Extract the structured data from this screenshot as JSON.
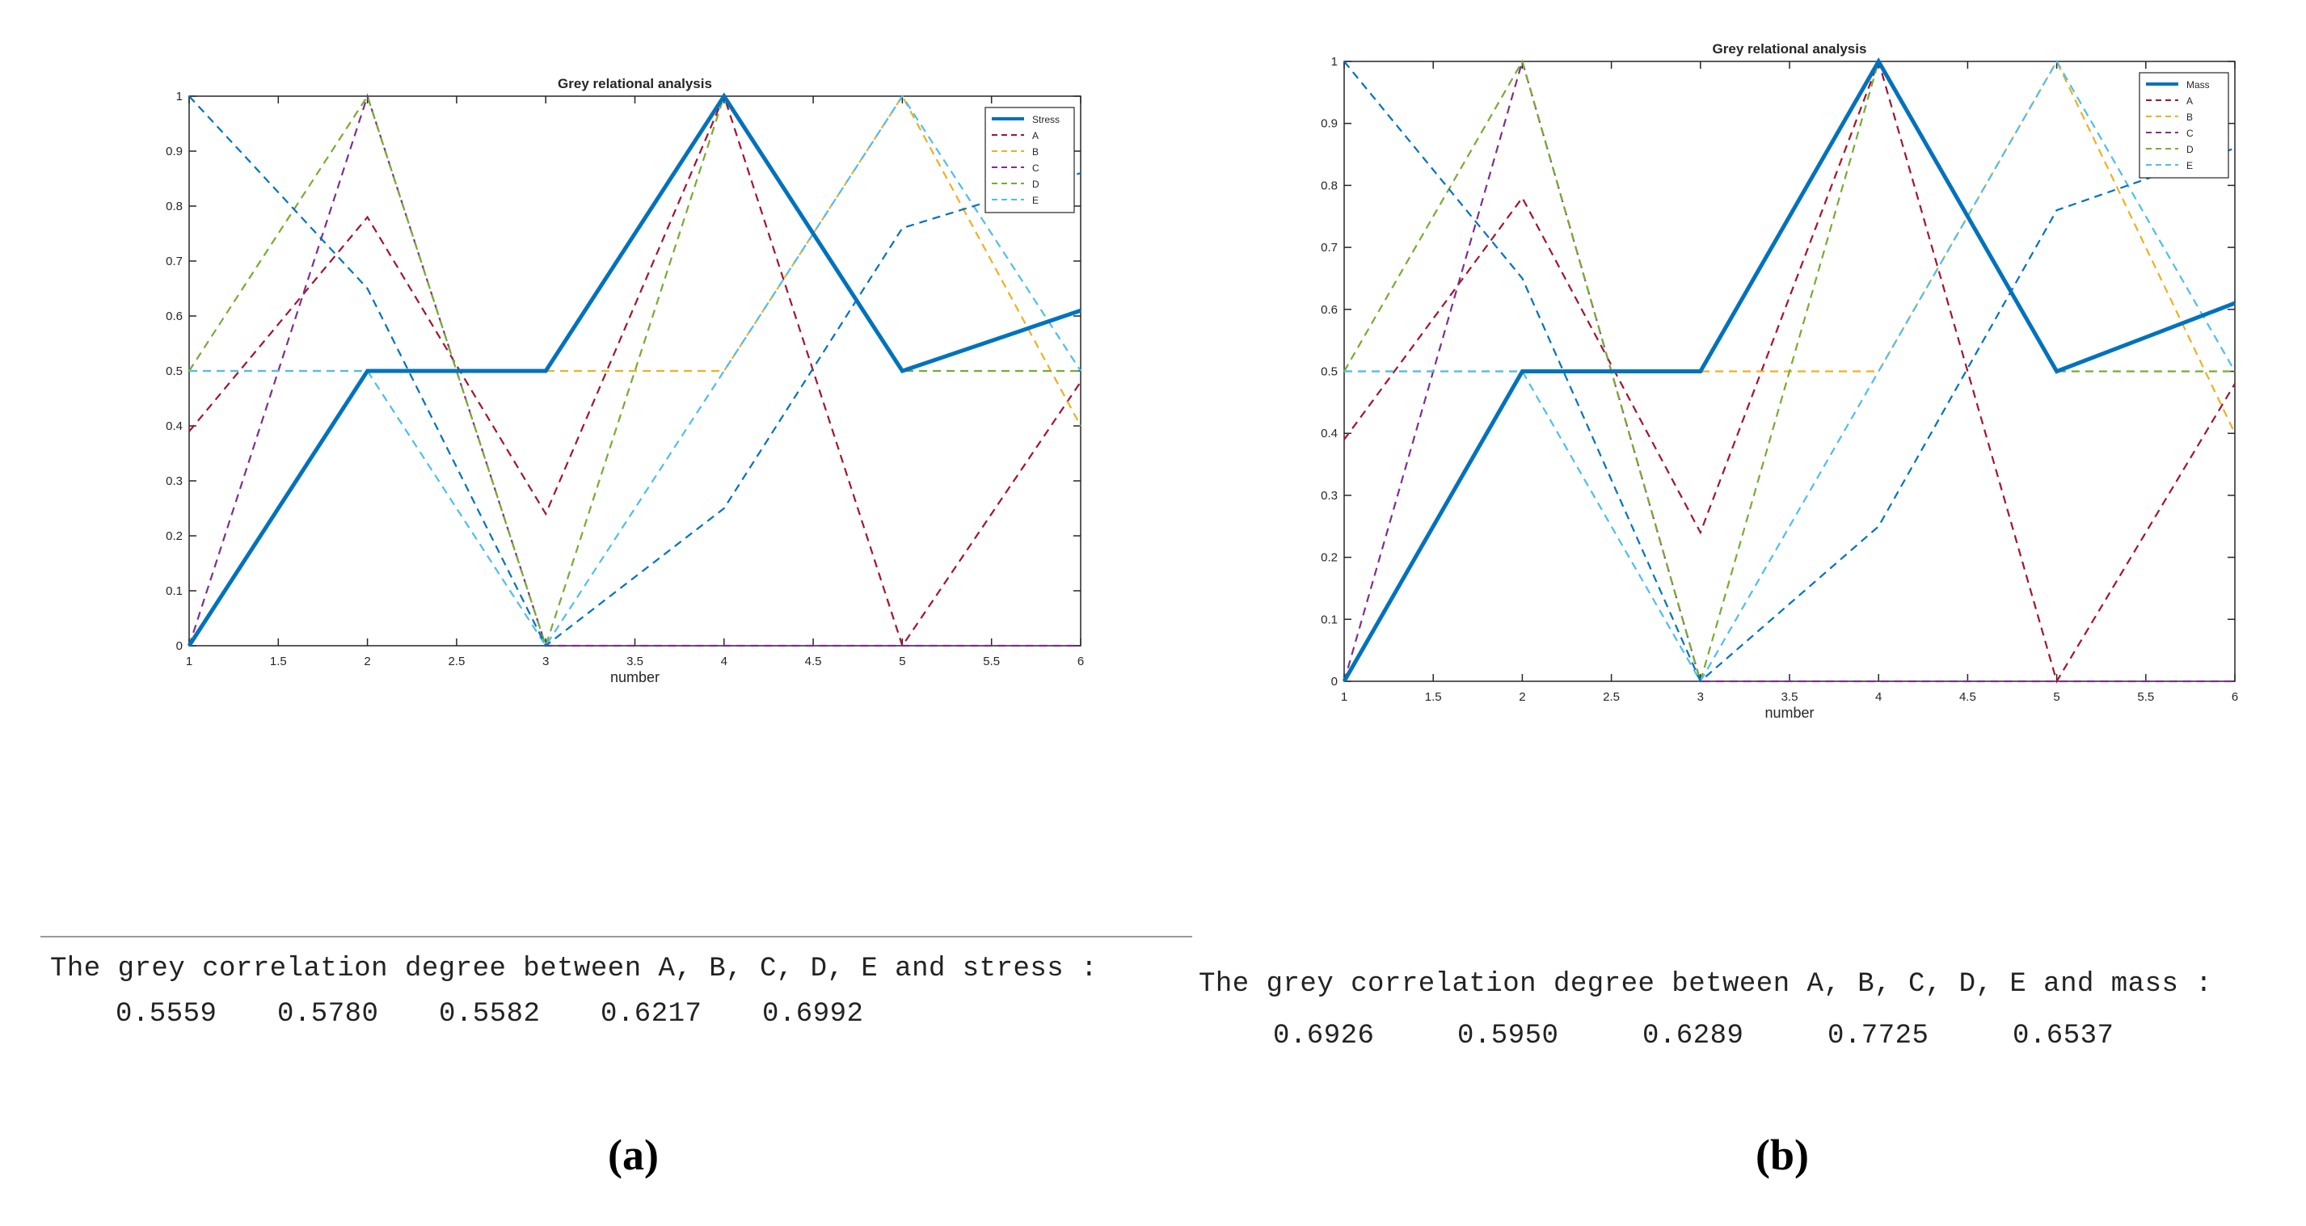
{
  "chart_data": [
    {
      "type": "line",
      "title": "Grey relational analysis",
      "xlabel": "number",
      "ylabel": "",
      "xlim": [
        1,
        6
      ],
      "ylim": [
        0,
        1
      ],
      "xticks": [
        "1",
        "1.5",
        "2",
        "2.5",
        "3",
        "3.5",
        "4",
        "4.5",
        "5",
        "5.5",
        "6"
      ],
      "yticks": [
        "0",
        "0.1",
        "0.2",
        "0.3",
        "0.4",
        "0.5",
        "0.6",
        "0.7",
        "0.8",
        "0.9",
        "1"
      ],
      "x": [
        1,
        2,
        3,
        4,
        5,
        6
      ],
      "legend_position": "top-right",
      "series": [
        {
          "name": "Stress",
          "values": [
            0,
            0.5,
            0.5,
            1,
            0.5,
            0.61
          ],
          "color": "#0072BD",
          "style": "solid"
        },
        {
          "name": "A",
          "values": [
            0.39,
            0.78,
            0.24,
            1,
            0,
            0.48
          ],
          "color": "#A2142F",
          "style": "dashed"
        },
        {
          "name": "B",
          "values": [
            0.5,
            0.5,
            0.5,
            0.5,
            1,
            0.4
          ],
          "color": "#EDB120",
          "style": "dashed"
        },
        {
          "name": "C",
          "values": [
            0,
            1,
            0,
            0,
            0,
            0
          ],
          "color": "#7E2F8E",
          "style": "dashed"
        },
        {
          "name": "D",
          "values": [
            0.5,
            1,
            0,
            1,
            0.5,
            0.5
          ],
          "color": "#77AC30",
          "style": "dashed"
        },
        {
          "name": "E",
          "values": [
            0.5,
            0.5,
            0,
            0.5,
            1,
            0.5
          ],
          "color": "#4DBEEE",
          "style": "dashed"
        },
        {
          "name": "",
          "values": [
            1,
            0.65,
            0,
            0.25,
            0.76,
            0.86
          ],
          "color": "#0072BD",
          "style": "dashed"
        }
      ]
    },
    {
      "type": "line",
      "title": "Grey relational analysis",
      "xlabel": "number",
      "ylabel": "",
      "xlim": [
        1,
        6
      ],
      "ylim": [
        0,
        1
      ],
      "xticks": [
        "1",
        "1.5",
        "2",
        "2.5",
        "3",
        "3.5",
        "4",
        "4.5",
        "5",
        "5.5",
        "6"
      ],
      "yticks": [
        "0",
        "0.1",
        "0.2",
        "0.3",
        "0.4",
        "0.5",
        "0.6",
        "0.7",
        "0.8",
        "0.9",
        "1"
      ],
      "x": [
        1,
        2,
        3,
        4,
        5,
        6
      ],
      "legend_position": "top-right",
      "series": [
        {
          "name": "Mass",
          "values": [
            0,
            0.5,
            0.5,
            1,
            0.5,
            0.61
          ],
          "color": "#0072BD",
          "style": "solid"
        },
        {
          "name": "A",
          "values": [
            0.39,
            0.78,
            0.24,
            1,
            0,
            0.48
          ],
          "color": "#A2142F",
          "style": "dashed"
        },
        {
          "name": "B",
          "values": [
            0.5,
            0.5,
            0.5,
            0.5,
            1,
            0.4
          ],
          "color": "#EDB120",
          "style": "dashed"
        },
        {
          "name": "C",
          "values": [
            0,
            1,
            0,
            0,
            0,
            0
          ],
          "color": "#7E2F8E",
          "style": "dashed"
        },
        {
          "name": "D",
          "values": [
            0.5,
            1,
            0,
            1,
            0.5,
            0.5
          ],
          "color": "#77AC30",
          "style": "dashed"
        },
        {
          "name": "E",
          "values": [
            0.5,
            0.5,
            0,
            0.5,
            1,
            0.5
          ],
          "color": "#4DBEEE",
          "style": "dashed"
        },
        {
          "name": "",
          "values": [
            1,
            0.65,
            0,
            0.25,
            0.76,
            0.86
          ],
          "color": "#0072BD",
          "style": "dashed"
        }
      ]
    }
  ],
  "panels": [
    {
      "label": "(a)",
      "console_line1": "The grey correlation degree between A, B, C, D, E and stress :",
      "degrees": [
        "0.5559",
        "0.5780",
        "0.5582",
        "0.6217",
        "0.6992"
      ]
    },
    {
      "label": "(b)",
      "console_line1": "The grey correlation degree between A, B, C, D, E and mass :",
      "degrees": [
        "0.6926",
        "0.5950",
        "0.6289",
        "0.7725",
        "0.6537"
      ]
    }
  ]
}
